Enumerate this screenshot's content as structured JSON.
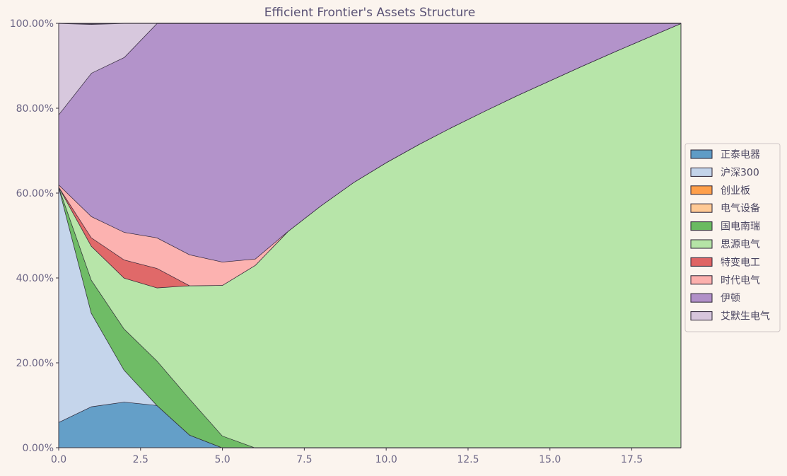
{
  "chart_data": {
    "type": "area",
    "stacked": true,
    "title": "Efficient Frontier's Assets Structure",
    "xlabel": "",
    "ylabel": "",
    "xlim": [
      0,
      19
    ],
    "ylim": [
      0,
      100
    ],
    "x_ticks": [
      0.0,
      2.5,
      5.0,
      7.5,
      10.0,
      12.5,
      15.0,
      17.5
    ],
    "x_tick_labels": [
      "0.0",
      "2.5",
      "5.0",
      "7.5",
      "10.0",
      "12.5",
      "15.0",
      "17.5"
    ],
    "y_ticks": [
      0,
      20,
      40,
      60,
      80,
      100
    ],
    "y_tick_labels": [
      "0.00%",
      "20.00%",
      "40.00%",
      "60.00%",
      "80.00%",
      "100.00%"
    ],
    "grid": false,
    "legend_position": "right",
    "x": [
      0,
      1,
      2,
      3,
      4,
      5,
      6,
      7,
      8,
      9,
      10,
      11,
      12,
      13,
      14,
      15,
      16,
      17,
      18,
      19
    ],
    "series": [
      {
        "name": "正泰电器",
        "color": "#5f9cc6",
        "values": [
          6,
          9.7,
          10.8,
          10,
          3,
          0,
          0,
          0,
          0,
          0,
          0,
          0,
          0,
          0,
          0,
          0,
          0,
          0,
          0,
          0
        ]
      },
      {
        "name": "沪深300",
        "color": "#c3d4ea",
        "values": [
          55.5,
          22,
          7.5,
          0,
          0,
          0,
          0,
          0,
          0,
          0,
          0,
          0,
          0,
          0,
          0,
          0,
          0,
          0,
          0,
          0
        ]
      },
      {
        "name": "创业板",
        "color": "#ff9f4a",
        "values": [
          0,
          0,
          0,
          0,
          0,
          0,
          0,
          0,
          0,
          0,
          0,
          0,
          0,
          0,
          0,
          0,
          0,
          0,
          0,
          0
        ]
      },
      {
        "name": "电气设备",
        "color": "#ffc994",
        "values": [
          0,
          0,
          0,
          0,
          0,
          0,
          0,
          0,
          0,
          0,
          0,
          0,
          0,
          0,
          0,
          0,
          0,
          0,
          0,
          0
        ]
      },
      {
        "name": "国电南瑞",
        "color": "#6aba61",
        "values": [
          0,
          7.8,
          9.7,
          10.5,
          8.5,
          2.8,
          0,
          0,
          0,
          0,
          0,
          0,
          0,
          0,
          0,
          0,
          0,
          0,
          0,
          0
        ]
      },
      {
        "name": "思源电气",
        "color": "#b5e4a6",
        "values": [
          0,
          8.0,
          12.0,
          17.2,
          26.7,
          35.5,
          43,
          51,
          57,
          62.5,
          67.2,
          71.5,
          75.5,
          79.3,
          83.0,
          86.5,
          90,
          93.4,
          96.7,
          100
        ]
      },
      {
        "name": "特变电工",
        "color": "#df6464",
        "values": [
          0,
          2,
          4.3,
          4.6,
          0,
          0,
          0,
          0,
          0,
          0,
          0,
          0,
          0,
          0,
          0,
          0,
          0,
          0,
          0,
          0
        ]
      },
      {
        "name": "时代电气",
        "color": "#fcb0ad",
        "values": [
          0.5,
          5,
          6.5,
          7.2,
          7.3,
          5.5,
          1.5,
          0,
          0,
          0,
          0,
          0,
          0,
          0,
          0,
          0,
          0,
          0,
          0,
          0
        ]
      },
      {
        "name": "伊顿",
        "color": "#b190c8",
        "values": [
          16.5,
          33.8,
          41.2,
          50.5,
          54.5,
          56.2,
          55.5,
          49,
          43,
          37.5,
          32.8,
          28.5,
          24.5,
          20.7,
          17.0,
          13.5,
          10,
          6.6,
          3.3,
          0
        ]
      },
      {
        "name": "艾默生电气",
        "color": "#d6c6dc",
        "values": [
          21.5,
          11.5,
          8,
          0,
          0,
          0,
          0,
          0,
          0,
          0,
          0,
          0,
          0,
          0,
          0,
          0,
          0,
          0,
          0,
          0
        ]
      }
    ]
  }
}
